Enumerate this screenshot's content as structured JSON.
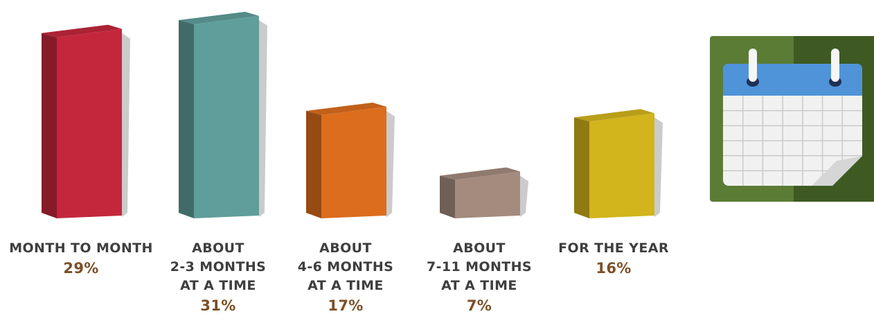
{
  "chart_data": {
    "type": "bar",
    "categories": [
      [
        "MONTH TO MONTH"
      ],
      [
        "ABOUT",
        "2-3 MONTHS",
        "AT A TIME"
      ],
      [
        "ABOUT",
        "4-6 MONTHS",
        "AT A TIME"
      ],
      [
        "ABOUT",
        "7-11 MONTHS",
        "AT A TIME"
      ],
      [
        "FOR THE YEAR"
      ]
    ],
    "values": [
      29,
      31,
      17,
      7,
      16
    ],
    "value_labels": [
      "29%",
      "31%",
      "17%",
      "7%",
      "16%"
    ],
    "colors": [
      "#c4273c",
      "#5f9e9b",
      "#dc6d1d",
      "#a48b7e",
      "#d2b41c"
    ],
    "title": "",
    "xlabel": "",
    "ylabel": "",
    "ylim": [
      0,
      31
    ],
    "grid": false,
    "legend": "none"
  },
  "decoration": {
    "icon": "calendar-icon",
    "colors": {
      "tile": "#5b7c35",
      "tile_shadow": "#3e5a22",
      "header": "#4f93d8",
      "page": "#f1f1f1",
      "grid": "#c9c9c9",
      "ring": "#f6f6f6",
      "ring_hole": "#1f2f55"
    }
  }
}
